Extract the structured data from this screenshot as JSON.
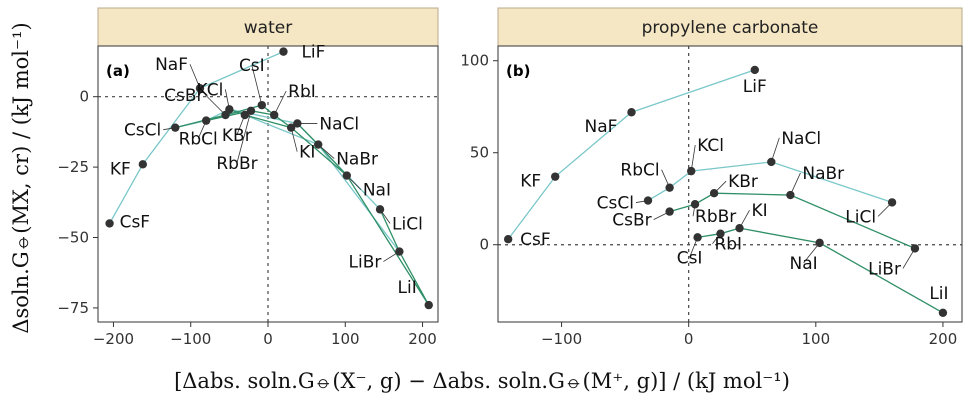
{
  "chart_data": [
    {
      "type": "scatter",
      "panel_label": "(a)",
      "strip_title": "water",
      "xlim": [
        -220,
        220
      ],
      "ylim": [
        -80,
        18
      ],
      "x_ticks": [
        -200,
        -100,
        0,
        100,
        200
      ],
      "y_ticks": [
        0,
        -25,
        -50,
        -75
      ],
      "x_tick_labels": [
        "−200",
        "−100",
        "0",
        "100",
        "200"
      ],
      "y_tick_labels": [
        "0",
        "−25",
        "−50",
        "−75"
      ],
      "line_colors": [
        "#79c7c9",
        "#2f8f66"
      ],
      "point_color": "#333333",
      "points": [
        {
          "label": "CsF",
          "x": -205,
          "y": -45
        },
        {
          "label": "KF",
          "x": -162,
          "y": -24
        },
        {
          "label": "CsCl",
          "x": -120,
          "y": -11
        },
        {
          "label": "NaF",
          "x": -88,
          "y": 3
        },
        {
          "label": "RbCl",
          "x": -80,
          "y": -8.5
        },
        {
          "label": "CsBr",
          "x": -55,
          "y": -6.5
        },
        {
          "label": "KCl",
          "x": -50,
          "y": -4.5
        },
        {
          "label": "KBr",
          "x": -30,
          "y": -6.5
        },
        {
          "label": "RbBr",
          "x": -22,
          "y": -5
        },
        {
          "label": "CsI",
          "x": -8,
          "y": -3
        },
        {
          "label": "RbI",
          "x": 8,
          "y": -6.5
        },
        {
          "label": "LiF",
          "x": 20,
          "y": 16
        },
        {
          "label": "KI",
          "x": 30,
          "y": -11
        },
        {
          "label": "NaCl",
          "x": 38,
          "y": -9.5
        },
        {
          "label": "NaBr",
          "x": 65,
          "y": -17
        },
        {
          "label": "NaI",
          "x": 102,
          "y": -28
        },
        {
          "label": "LiCl",
          "x": 145,
          "y": -40
        },
        {
          "label": "LiBr",
          "x": 170,
          "y": -55
        },
        {
          "label": "LiI",
          "x": 208,
          "y": -74
        }
      ],
      "series": [
        {
          "color": "#79c7c9",
          "path": [
            "CsF",
            "KF",
            "NaF",
            "LiF"
          ]
        },
        {
          "color": "#79c7c9",
          "path": [
            "CsCl",
            "RbCl",
            "KCl",
            "NaCl",
            "LiCl"
          ]
        },
        {
          "color": "#79c7c9",
          "path": [
            "CsBr",
            "RbBr",
            "KBr",
            "NaBr",
            "LiBr"
          ]
        },
        {
          "color": "#2f8f66",
          "path": [
            "CsI",
            "RbI",
            "KI",
            "NaI",
            "LiI"
          ]
        },
        {
          "color": "#2f8f66",
          "path": [
            "CsCl",
            "CsBr",
            "CsI"
          ]
        },
        {
          "color": "#2f8f66",
          "path": [
            "RbCl",
            "RbBr",
            "RbI"
          ]
        },
        {
          "color": "#2f8f66",
          "path": [
            "KCl",
            "KBr",
            "KI"
          ]
        },
        {
          "color": "#2f8f66",
          "path": [
            "NaCl",
            "NaBr",
            "NaI"
          ]
        },
        {
          "color": "#2f8f66",
          "path": [
            "LiCl",
            "LiBr",
            "LiI"
          ]
        }
      ]
    },
    {
      "type": "scatter",
      "panel_label": "(b)",
      "strip_title": "propylene carbonate",
      "xlim": [
        -150,
        215
      ],
      "ylim": [
        -42,
        108
      ],
      "x_ticks": [
        -100,
        0,
        100,
        200
      ],
      "y_ticks": [
        100,
        50,
        0
      ],
      "x_tick_labels": [
        "−100",
        "0",
        "100",
        "200"
      ],
      "y_tick_labels": [
        "100",
        "50",
        "0"
      ],
      "line_colors": [
        "#79c7c9",
        "#2f8f66"
      ],
      "point_color": "#333333",
      "points": [
        {
          "label": "CsF",
          "x": -142,
          "y": 3
        },
        {
          "label": "KF",
          "x": -105,
          "y": 37
        },
        {
          "label": "NaF",
          "x": -45,
          "y": 72
        },
        {
          "label": "LiF",
          "x": 52,
          "y": 95
        },
        {
          "label": "CsCl",
          "x": -32,
          "y": 24
        },
        {
          "label": "RbCl",
          "x": -15,
          "y": 31
        },
        {
          "label": "KCl",
          "x": 2,
          "y": 40
        },
        {
          "label": "NaCl",
          "x": 65,
          "y": 45
        },
        {
          "label": "LiCl",
          "x": 160,
          "y": 23
        },
        {
          "label": "CsBr",
          "x": -15,
          "y": 18
        },
        {
          "label": "RbBr",
          "x": 5,
          "y": 22
        },
        {
          "label": "KBr",
          "x": 20,
          "y": 28
        },
        {
          "label": "NaBr",
          "x": 80,
          "y": 27
        },
        {
          "label": "LiBr",
          "x": 178,
          "y": -2
        },
        {
          "label": "CsI",
          "x": 7,
          "y": 4
        },
        {
          "label": "RbI",
          "x": 25,
          "y": 6
        },
        {
          "label": "KI",
          "x": 40,
          "y": 9
        },
        {
          "label": "NaI",
          "x": 103,
          "y": 1
        },
        {
          "label": "LiI",
          "x": 200,
          "y": -37
        }
      ],
      "series": [
        {
          "color": "#79c7c9",
          "path": [
            "CsF",
            "KF",
            "NaF",
            "LiF"
          ]
        },
        {
          "color": "#79c7c9",
          "path": [
            "CsCl",
            "RbCl",
            "KCl",
            "NaCl",
            "LiCl"
          ]
        },
        {
          "color": "#2f8f66",
          "path": [
            "CsBr",
            "RbBr",
            "KBr",
            "NaBr",
            "LiBr"
          ]
        },
        {
          "color": "#2f8f66",
          "path": [
            "CsI",
            "RbI",
            "KI",
            "NaI",
            "LiI"
          ]
        }
      ]
    }
  ],
  "axes": {
    "y_title": "Δsoln.G⦵(MX, cr) / (kJ mol⁻¹)",
    "x_title": "[Δabs. soln.G⦵(X⁻, g) − Δabs. soln.G⦵(M⁺, g)] / (kJ mol⁻¹)"
  }
}
